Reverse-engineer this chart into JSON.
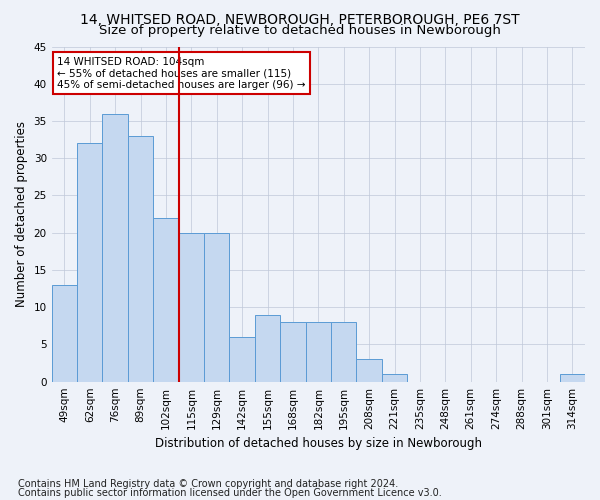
{
  "title": "14, WHITSED ROAD, NEWBOROUGH, PETERBOROUGH, PE6 7ST",
  "subtitle": "Size of property relative to detached houses in Newborough",
  "xlabel": "Distribution of detached houses by size in Newborough",
  "ylabel": "Number of detached properties",
  "categories": [
    "49sqm",
    "62sqm",
    "76sqm",
    "89sqm",
    "102sqm",
    "115sqm",
    "129sqm",
    "142sqm",
    "155sqm",
    "168sqm",
    "182sqm",
    "195sqm",
    "208sqm",
    "221sqm",
    "235sqm",
    "248sqm",
    "261sqm",
    "274sqm",
    "288sqm",
    "301sqm",
    "314sqm"
  ],
  "values": [
    13,
    32,
    36,
    33,
    22,
    20,
    20,
    6,
    9,
    8,
    8,
    8,
    3,
    1,
    0,
    0,
    0,
    0,
    0,
    0,
    1
  ],
  "bar_color": "#c5d8f0",
  "bar_edge_color": "#5b9bd5",
  "highlight_index": 4,
  "highlight_line_color": "#cc0000",
  "ylim": [
    0,
    45
  ],
  "yticks": [
    0,
    5,
    10,
    15,
    20,
    25,
    30,
    35,
    40,
    45
  ],
  "annotation_line1": "14 WHITSED ROAD: 104sqm",
  "annotation_line2": "← 55% of detached houses are smaller (115)",
  "annotation_line3": "45% of semi-detached houses are larger (96) →",
  "annotation_box_color": "#ffffff",
  "annotation_box_edge": "#cc0000",
  "footer1": "Contains HM Land Registry data © Crown copyright and database right 2024.",
  "footer2": "Contains public sector information licensed under the Open Government Licence v3.0.",
  "bg_color": "#eef2f9",
  "plot_bg_color": "#eef2f9",
  "title_fontsize": 10,
  "subtitle_fontsize": 9.5,
  "tick_fontsize": 7.5,
  "label_fontsize": 8.5,
  "annotation_fontsize": 7.5,
  "footer_fontsize": 7
}
